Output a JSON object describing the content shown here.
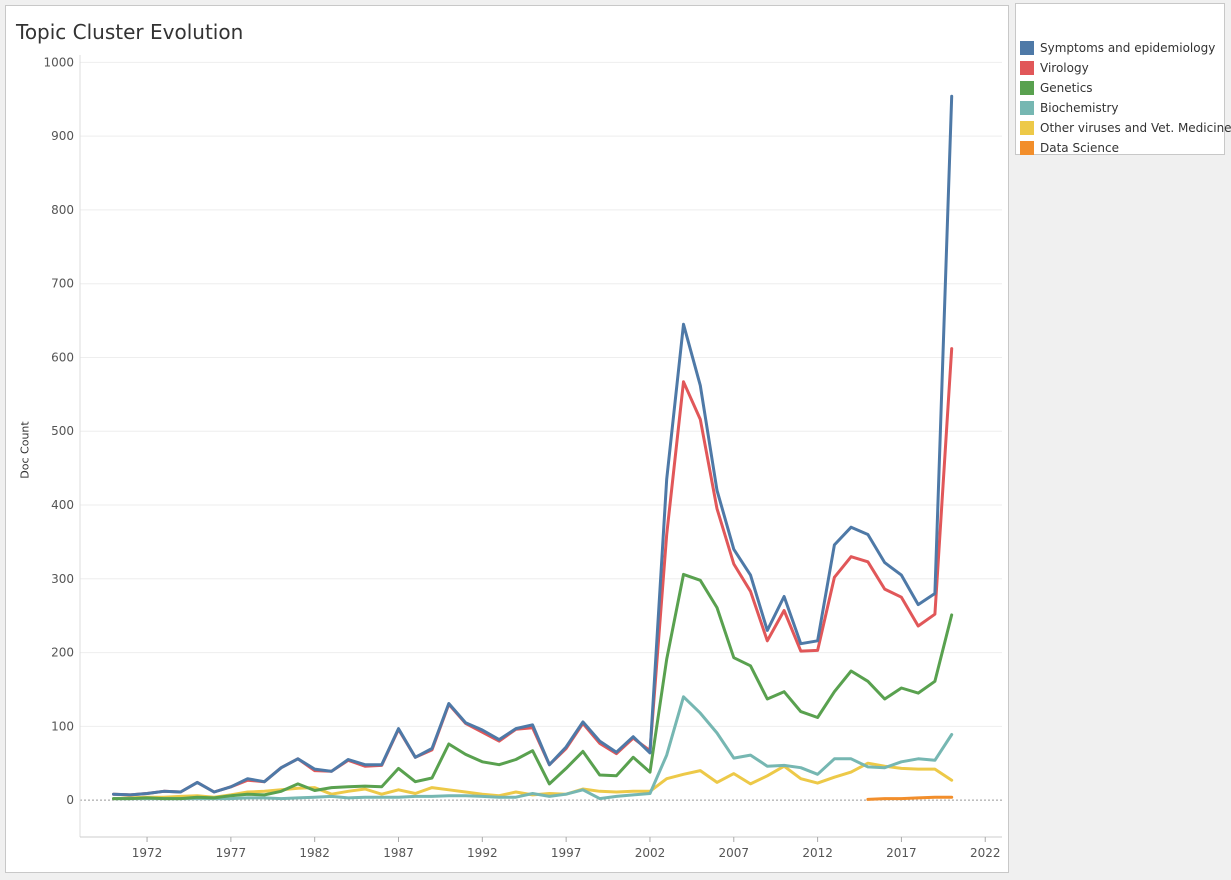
{
  "title": "Topic Cluster Evolution",
  "chart_data": {
    "type": "line",
    "title": "Topic Cluster Evolution",
    "xlabel": "",
    "ylabel": "Doc Count",
    "xlim": [
      1968,
      2023
    ],
    "ylim": [
      -50,
      1010
    ],
    "x_ticks": [
      1972,
      1977,
      1982,
      1987,
      1992,
      1997,
      2002,
      2007,
      2012,
      2017,
      2022
    ],
    "y_ticks": [
      0,
      100,
      200,
      300,
      400,
      500,
      600,
      700,
      800,
      900,
      1000
    ],
    "grid": "horizontal",
    "legend_position": "right",
    "series": [
      {
        "name": "Symptoms and epidemiology",
        "color": "#4e79a7",
        "x": [
          1970,
          1971,
          1972,
          1973,
          1974,
          1975,
          1976,
          1977,
          1978,
          1979,
          1980,
          1981,
          1982,
          1983,
          1984,
          1985,
          1986,
          1987,
          1988,
          1989,
          1990,
          1991,
          1992,
          1993,
          1994,
          1995,
          1996,
          1997,
          1998,
          1999,
          2000,
          2001,
          2002,
          2003,
          2004,
          2005,
          2006,
          2007,
          2008,
          2009,
          2010,
          2011,
          2012,
          2013,
          2014,
          2015,
          2016,
          2017,
          2018,
          2019,
          2020
        ],
        "y": [
          8,
          7,
          9,
          12,
          11,
          24,
          11,
          18,
          29,
          25,
          44,
          56,
          42,
          39,
          55,
          48,
          48,
          97,
          58,
          70,
          131,
          105,
          95,
          82,
          97,
          102,
          48,
          72,
          106,
          80,
          65,
          86,
          64,
          435,
          645,
          562,
          420,
          340,
          305,
          230,
          276,
          212,
          216,
          346,
          370,
          360,
          322,
          305,
          265,
          280,
          954
        ]
      },
      {
        "name": "Virology",
        "color": "#e15759",
        "x": [
          1970,
          1971,
          1972,
          1973,
          1974,
          1975,
          1976,
          1977,
          1978,
          1979,
          1980,
          1981,
          1982,
          1983,
          1984,
          1985,
          1986,
          1987,
          1988,
          1989,
          1990,
          1991,
          1992,
          1993,
          1994,
          1995,
          1996,
          1997,
          1998,
          1999,
          2000,
          2001,
          2002,
          2003,
          2004,
          2005,
          2006,
          2007,
          2008,
          2009,
          2010,
          2011,
          2012,
          2013,
          2014,
          2015,
          2016,
          2017,
          2018,
          2019,
          2020
        ],
        "y": [
          8,
          7,
          9,
          12,
          11,
          24,
          11,
          18,
          27,
          25,
          44,
          56,
          40,
          39,
          54,
          46,
          47,
          96,
          58,
          68,
          130,
          104,
          92,
          80,
          96,
          98,
          48,
          70,
          104,
          77,
          63,
          84,
          67,
          360,
          567,
          516,
          395,
          320,
          283,
          216,
          257,
          202,
          203,
          302,
          330,
          323,
          286,
          275,
          236,
          252,
          612
        ]
      },
      {
        "name": "Genetics",
        "color": "#59a14f",
        "x": [
          1970,
          1971,
          1972,
          1973,
          1974,
          1975,
          1976,
          1977,
          1978,
          1979,
          1980,
          1981,
          1982,
          1983,
          1984,
          1985,
          1986,
          1987,
          1988,
          1989,
          1990,
          1991,
          1992,
          1993,
          1994,
          1995,
          1996,
          1997,
          1998,
          1999,
          2000,
          2001,
          2002,
          2003,
          2004,
          2005,
          2006,
          2007,
          2008,
          2009,
          2010,
          2011,
          2012,
          2013,
          2014,
          2015,
          2016,
          2017,
          2018,
          2019,
          2020
        ],
        "y": [
          2,
          2,
          3,
          2,
          2,
          4,
          3,
          6,
          8,
          7,
          12,
          22,
          13,
          17,
          18,
          19,
          18,
          43,
          25,
          30,
          76,
          62,
          52,
          48,
          55,
          67,
          22,
          43,
          66,
          34,
          33,
          58,
          38,
          191,
          306,
          298,
          261,
          193,
          182,
          137,
          147,
          120,
          112,
          147,
          175,
          161,
          137,
          152,
          145,
          161,
          251
        ]
      },
      {
        "name": "Biochemistry",
        "color": "#76b7b2",
        "x": [
          1970,
          1971,
          1972,
          1973,
          1974,
          1975,
          1976,
          1977,
          1978,
          1979,
          1980,
          1981,
          1982,
          1983,
          1984,
          1985,
          1986,
          1987,
          1988,
          1989,
          1990,
          1991,
          1992,
          1993,
          1994,
          1995,
          1996,
          1997,
          1998,
          1999,
          2000,
          2001,
          2002,
          2003,
          2004,
          2005,
          2006,
          2007,
          2008,
          2009,
          2010,
          2011,
          2012,
          2013,
          2014,
          2015,
          2016,
          2017,
          2018,
          2019,
          2020
        ],
        "y": [
          2,
          2,
          2,
          2,
          2,
          2,
          2,
          2,
          3,
          3,
          2,
          3,
          4,
          5,
          3,
          4,
          4,
          4,
          5,
          5,
          6,
          6,
          5,
          4,
          4,
          9,
          5,
          8,
          14,
          2,
          5,
          7,
          9,
          61,
          140,
          118,
          91,
          57,
          61,
          46,
          47,
          44,
          35,
          56,
          56,
          45,
          44,
          52,
          56,
          54,
          89
        ]
      },
      {
        "name": "Other viruses and Vet. Medicine",
        "color": "#edc948",
        "x": [
          1970,
          1971,
          1972,
          1973,
          1974,
          1975,
          1976,
          1977,
          1978,
          1979,
          1980,
          1981,
          1982,
          1983,
          1984,
          1985,
          1986,
          1987,
          1988,
          1989,
          1990,
          1991,
          1992,
          1993,
          1994,
          1995,
          1996,
          1997,
          1998,
          1999,
          2000,
          2001,
          2002,
          2003,
          2004,
          2005,
          2006,
          2007,
          2008,
          2009,
          2010,
          2011,
          2012,
          2013,
          2014,
          2015,
          2016,
          2017,
          2018,
          2019,
          2020
        ],
        "y": [
          2,
          3,
          4,
          4,
          5,
          6,
          4,
          7,
          11,
          12,
          14,
          16,
          17,
          8,
          12,
          15,
          8,
          14,
          9,
          17,
          14,
          11,
          8,
          6,
          11,
          7,
          9,
          8,
          15,
          12,
          11,
          12,
          12,
          29,
          35,
          40,
          24,
          36,
          22,
          33,
          46,
          29,
          23,
          31,
          38,
          50,
          46,
          43,
          42,
          42,
          27
        ]
      },
      {
        "name": "Data Science",
        "color": "#f28e2b",
        "x": [
          2015,
          2016,
          2017,
          2018,
          2019,
          2020
        ],
        "y": [
          1,
          2,
          2,
          3,
          4,
          4
        ]
      }
    ]
  }
}
